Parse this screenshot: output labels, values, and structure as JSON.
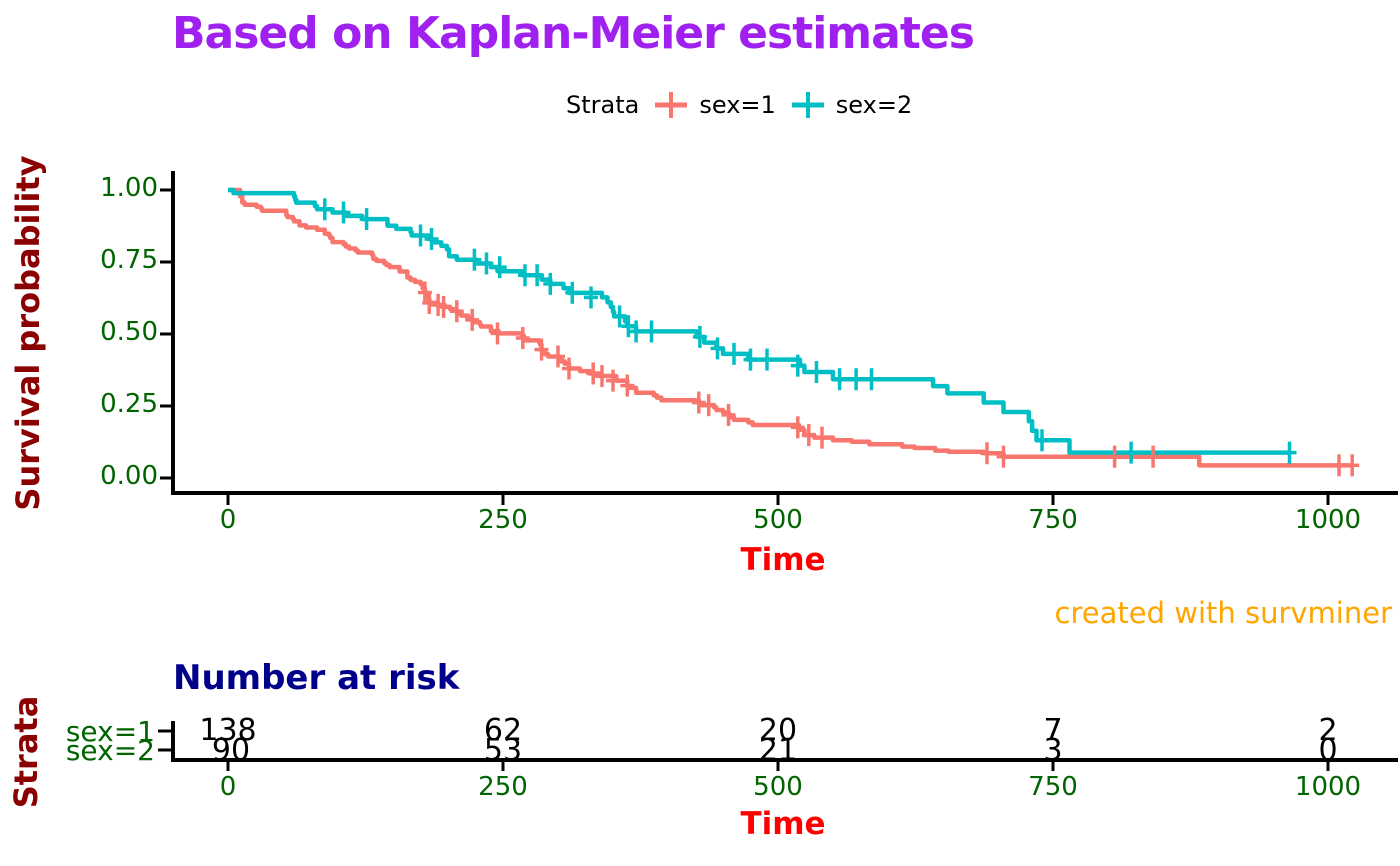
{
  "title": "Based on Kaplan-Meier estimates",
  "legend": {
    "label": "Strata",
    "items": [
      {
        "label": "sex=1",
        "color": "#F8766D"
      },
      {
        "label": "sex=2",
        "color": "#00BFC4"
      }
    ]
  },
  "yaxis": {
    "label": "Survival probability",
    "ticks": [
      "1.00",
      "0.75",
      "0.50",
      "0.25",
      "0.00"
    ]
  },
  "xaxis": {
    "label": "Time",
    "ticks": [
      "0",
      "250",
      "500",
      "750",
      "1000"
    ]
  },
  "caption": "created with survminer",
  "risk_table": {
    "title": "Number at risk",
    "ylabel": "Strata",
    "xlabel": "Time",
    "xticks": [
      "0",
      "250",
      "500",
      "750",
      "1000"
    ],
    "rows": [
      {
        "label": "sex=1",
        "values": [
          "138",
          "62",
          "20",
          "7",
          "2"
        ]
      },
      {
        "label": "sex=2",
        "values": [
          "90",
          "53",
          "21",
          "3",
          "0"
        ]
      }
    ]
  },
  "colors": {
    "title": "#A020F0",
    "axis_title_y": "#8B0000",
    "axis_title_x": "#FF0000",
    "ticks": "#006400",
    "caption": "#FFA500",
    "risk_title": "#00008B",
    "strata1": "#F8766D",
    "strata2": "#00BFC4",
    "axis_line": "#000000"
  },
  "chart_data": {
    "type": "line",
    "subtype": "kaplan-meier-step",
    "title": "Based on Kaplan-Meier estimates",
    "xlabel": "Time",
    "ylabel": "Survival probability",
    "xlim": [
      0,
      1022
    ],
    "ylim": [
      0,
      1
    ],
    "xticks": [
      0,
      250,
      500,
      750,
      1000
    ],
    "yticks": [
      1.0,
      0.75,
      0.5,
      0.25,
      0.0
    ],
    "grid": false,
    "legend_position": "top",
    "series": [
      {
        "name": "sex=1",
        "color": "#F8766D",
        "n_risk_at_ticks": [
          138,
          62,
          20,
          7,
          2
        ],
        "end_time": 1022,
        "points": [
          [
            0,
            1.0
          ],
          [
            11,
            0.978
          ],
          [
            13,
            0.957
          ],
          [
            15,
            0.949
          ],
          [
            26,
            0.942
          ],
          [
            30,
            0.935
          ],
          [
            31,
            0.928
          ],
          [
            53,
            0.913
          ],
          [
            54,
            0.906
          ],
          [
            59,
            0.899
          ],
          [
            60,
            0.891
          ],
          [
            65,
            0.877
          ],
          [
            71,
            0.87
          ],
          [
            81,
            0.862
          ],
          [
            88,
            0.848
          ],
          [
            92,
            0.841
          ],
          [
            93,
            0.833
          ],
          [
            95,
            0.819
          ],
          [
            105,
            0.812
          ],
          [
            107,
            0.804
          ],
          [
            110,
            0.797
          ],
          [
            116,
            0.79
          ],
          [
            118,
            0.783
          ],
          [
            131,
            0.775
          ],
          [
            132,
            0.761
          ],
          [
            135,
            0.754
          ],
          [
            142,
            0.746
          ],
          [
            144,
            0.739
          ],
          [
            147,
            0.732
          ],
          [
            156,
            0.717
          ],
          [
            163,
            0.696
          ],
          [
            166,
            0.688
          ],
          [
            170,
            0.681
          ],
          [
            175,
            0.674
          ],
          [
            177,
            0.659
          ],
          [
            179,
            0.644
          ],
          [
            180,
            0.637
          ],
          [
            181,
            0.623
          ],
          [
            183,
            0.608
          ],
          [
            189,
            0.601
          ],
          [
            197,
            0.594
          ],
          [
            202,
            0.586
          ],
          [
            207,
            0.579
          ],
          [
            210,
            0.571
          ],
          [
            212,
            0.564
          ],
          [
            218,
            0.556
          ],
          [
            222,
            0.549
          ],
          [
            223,
            0.541
          ],
          [
            229,
            0.533
          ],
          [
            230,
            0.526
          ],
          [
            239,
            0.51
          ],
          [
            246,
            0.502
          ],
          [
            267,
            0.494
          ],
          [
            269,
            0.486
          ],
          [
            270,
            0.478
          ],
          [
            283,
            0.47
          ],
          [
            284,
            0.462
          ],
          [
            285,
            0.446
          ],
          [
            286,
            0.438
          ],
          [
            288,
            0.43
          ],
          [
            291,
            0.422
          ],
          [
            301,
            0.414
          ],
          [
            303,
            0.405
          ],
          [
            306,
            0.397
          ],
          [
            310,
            0.38
          ],
          [
            320,
            0.371
          ],
          [
            329,
            0.363
          ],
          [
            337,
            0.354
          ],
          [
            353,
            0.338
          ],
          [
            363,
            0.321
          ],
          [
            364,
            0.313
          ],
          [
            371,
            0.296
          ],
          [
            387,
            0.287
          ],
          [
            390,
            0.279
          ],
          [
            394,
            0.27
          ],
          [
            428,
            0.262
          ],
          [
            429,
            0.253
          ],
          [
            442,
            0.245
          ],
          [
            444,
            0.236
          ],
          [
            450,
            0.228
          ],
          [
            455,
            0.219
          ],
          [
            457,
            0.211
          ],
          [
            460,
            0.202
          ],
          [
            473,
            0.193
          ],
          [
            477,
            0.184
          ],
          [
            519,
            0.176
          ],
          [
            520,
            0.167
          ],
          [
            524,
            0.149
          ],
          [
            533,
            0.14
          ],
          [
            550,
            0.131
          ],
          [
            567,
            0.126
          ],
          [
            583,
            0.117
          ],
          [
            613,
            0.109
          ],
          [
            624,
            0.104
          ],
          [
            643,
            0.095
          ],
          [
            655,
            0.091
          ],
          [
            687,
            0.086
          ],
          [
            705,
            0.074
          ],
          [
            883,
            0.044
          ]
        ],
        "censors": [
          [
            179,
            0.644
          ],
          [
            183,
            0.608
          ],
          [
            191,
            0.601
          ],
          [
            196,
            0.594
          ],
          [
            208,
            0.579
          ],
          [
            222,
            0.549
          ],
          [
            245,
            0.502
          ],
          [
            268,
            0.486
          ],
          [
            285,
            0.446
          ],
          [
            300,
            0.422
          ],
          [
            310,
            0.38
          ],
          [
            332,
            0.363
          ],
          [
            340,
            0.354
          ],
          [
            350,
            0.338
          ],
          [
            363,
            0.321
          ],
          [
            428,
            0.262
          ],
          [
            437,
            0.253
          ],
          [
            455,
            0.219
          ],
          [
            518,
            0.176
          ],
          [
            528,
            0.149
          ],
          [
            540,
            0.14
          ],
          [
            690,
            0.086
          ],
          [
            705,
            0.074
          ],
          [
            806,
            0.074
          ],
          [
            841,
            0.074
          ],
          [
            1010,
            0.044
          ],
          [
            1022,
            0.044
          ]
        ]
      },
      {
        "name": "sex=2",
        "color": "#00BFC4",
        "n_risk_at_ticks": [
          90,
          53,
          21,
          3,
          0
        ],
        "end_time": 965,
        "points": [
          [
            0,
            1.0
          ],
          [
            5,
            0.989
          ],
          [
            60,
            0.978
          ],
          [
            61,
            0.967
          ],
          [
            62,
            0.956
          ],
          [
            79,
            0.944
          ],
          [
            81,
            0.933
          ],
          [
            95,
            0.922
          ],
          [
            107,
            0.91
          ],
          [
            122,
            0.899
          ],
          [
            145,
            0.876
          ],
          [
            153,
            0.865
          ],
          [
            166,
            0.854
          ],
          [
            167,
            0.842
          ],
          [
            182,
            0.83
          ],
          [
            186,
            0.818
          ],
          [
            194,
            0.806
          ],
          [
            199,
            0.794
          ],
          [
            201,
            0.77
          ],
          [
            208,
            0.758
          ],
          [
            226,
            0.745
          ],
          [
            239,
            0.732
          ],
          [
            245,
            0.718
          ],
          [
            268,
            0.704
          ],
          [
            285,
            0.689
          ],
          [
            293,
            0.674
          ],
          [
            305,
            0.659
          ],
          [
            310,
            0.643
          ],
          [
            340,
            0.627
          ],
          [
            345,
            0.61
          ],
          [
            348,
            0.594
          ],
          [
            350,
            0.577
          ],
          [
            351,
            0.561
          ],
          [
            361,
            0.544
          ],
          [
            363,
            0.527
          ],
          [
            371,
            0.509
          ],
          [
            426,
            0.49
          ],
          [
            433,
            0.47
          ],
          [
            444,
            0.45
          ],
          [
            450,
            0.431
          ],
          [
            473,
            0.411
          ],
          [
            520,
            0.39
          ],
          [
            524,
            0.368
          ],
          [
            550,
            0.343
          ],
          [
            641,
            0.319
          ],
          [
            654,
            0.294
          ],
          [
            687,
            0.262
          ],
          [
            705,
            0.229
          ],
          [
            728,
            0.197
          ],
          [
            731,
            0.164
          ],
          [
            735,
            0.131
          ],
          [
            765,
            0.088
          ]
        ],
        "censors": [
          [
            88,
            0.933
          ],
          [
            105,
            0.922
          ],
          [
            126,
            0.899
          ],
          [
            175,
            0.842
          ],
          [
            185,
            0.83
          ],
          [
            224,
            0.758
          ],
          [
            235,
            0.745
          ],
          [
            247,
            0.732
          ],
          [
            270,
            0.704
          ],
          [
            281,
            0.704
          ],
          [
            293,
            0.674
          ],
          [
            313,
            0.643
          ],
          [
            330,
            0.627
          ],
          [
            356,
            0.561
          ],
          [
            364,
            0.527
          ],
          [
            371,
            0.509
          ],
          [
            385,
            0.509
          ],
          [
            429,
            0.49
          ],
          [
            445,
            0.45
          ],
          [
            460,
            0.431
          ],
          [
            475,
            0.411
          ],
          [
            490,
            0.411
          ],
          [
            518,
            0.39
          ],
          [
            535,
            0.368
          ],
          [
            556,
            0.343
          ],
          [
            571,
            0.343
          ],
          [
            585,
            0.343
          ],
          [
            740,
            0.131
          ],
          [
            821,
            0.088
          ],
          [
            965,
            0.088
          ]
        ]
      }
    ]
  }
}
